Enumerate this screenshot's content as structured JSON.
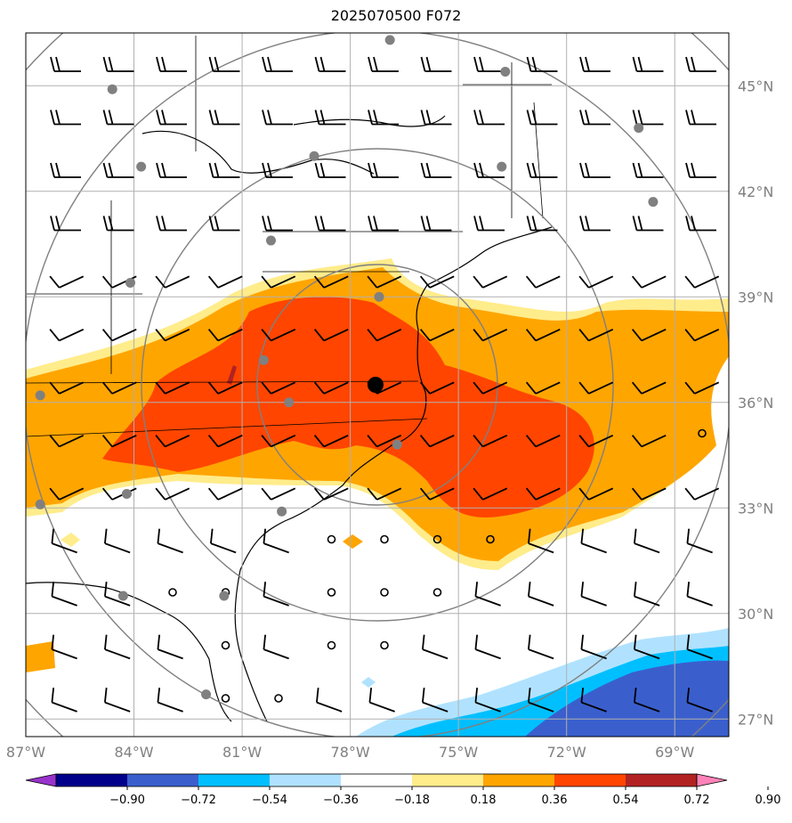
{
  "title": "2025070500 F072",
  "map": {
    "lon_range": [
      -87.0,
      -67.5
    ],
    "lat_range": [
      26.5,
      46.5
    ],
    "center_marker": {
      "lon": -77.3,
      "lat": 36.5
    },
    "lat_labels": [
      {
        "value": 45,
        "text": "45°N"
      },
      {
        "value": 42,
        "text": "42°N"
      },
      {
        "value": 39,
        "text": "39°N"
      },
      {
        "value": 36,
        "text": "36°N"
      },
      {
        "value": 33,
        "text": "33°N"
      },
      {
        "value": 30,
        "text": "30°N"
      },
      {
        "value": 27,
        "text": "27°N"
      }
    ],
    "lon_labels": [
      {
        "value": -87,
        "text": "87°W"
      },
      {
        "value": -84,
        "text": "84°W"
      },
      {
        "value": -81,
        "text": "81°W"
      },
      {
        "value": -78,
        "text": "78°W"
      },
      {
        "value": -75,
        "text": "75°W"
      },
      {
        "value": -72,
        "text": "72°W"
      },
      {
        "value": -69,
        "text": "69°W"
      }
    ],
    "stations": [
      {
        "lon": -76.9,
        "lat": 46.3
      },
      {
        "lon": -73.7,
        "lat": 45.4
      },
      {
        "lon": -84.6,
        "lat": 44.9
      },
      {
        "lon": -70.0,
        "lat": 43.8
      },
      {
        "lon": -79.0,
        "lat": 43.0
      },
      {
        "lon": -83.8,
        "lat": 42.7
      },
      {
        "lon": -73.8,
        "lat": 42.7
      },
      {
        "lon": -69.6,
        "lat": 41.7
      },
      {
        "lon": -80.2,
        "lat": 40.6
      },
      {
        "lon": -84.1,
        "lat": 39.4
      },
      {
        "lon": -77.2,
        "lat": 39.0
      },
      {
        "lon": -80.4,
        "lat": 37.2
      },
      {
        "lon": -86.6,
        "lat": 36.2
      },
      {
        "lon": -79.7,
        "lat": 36.0
      },
      {
        "lon": -76.7,
        "lat": 34.8
      },
      {
        "lon": -84.2,
        "lat": 33.4
      },
      {
        "lon": -86.6,
        "lat": 33.1
      },
      {
        "lon": -79.9,
        "lat": 32.9
      },
      {
        "lon": -84.3,
        "lat": 30.5
      },
      {
        "lon": -81.5,
        "lat": 30.5
      },
      {
        "lon": -82.0,
        "lat": 27.7
      }
    ]
  },
  "colorbar": {
    "levels": [
      "−0.90",
      "−0.72",
      "−0.54",
      "−0.36",
      "−0.18",
      "0.18",
      "0.36",
      "0.54",
      "0.72",
      "0.90"
    ],
    "colors": [
      "#9932cc",
      "#00008b",
      "#3a5fcd",
      "#00bfff",
      "#b0e2ff",
      "#ffffff",
      "#ffec8b",
      "#ffa500",
      "#ff4500",
      "#b22222",
      "#ff83b8"
    ]
  }
}
